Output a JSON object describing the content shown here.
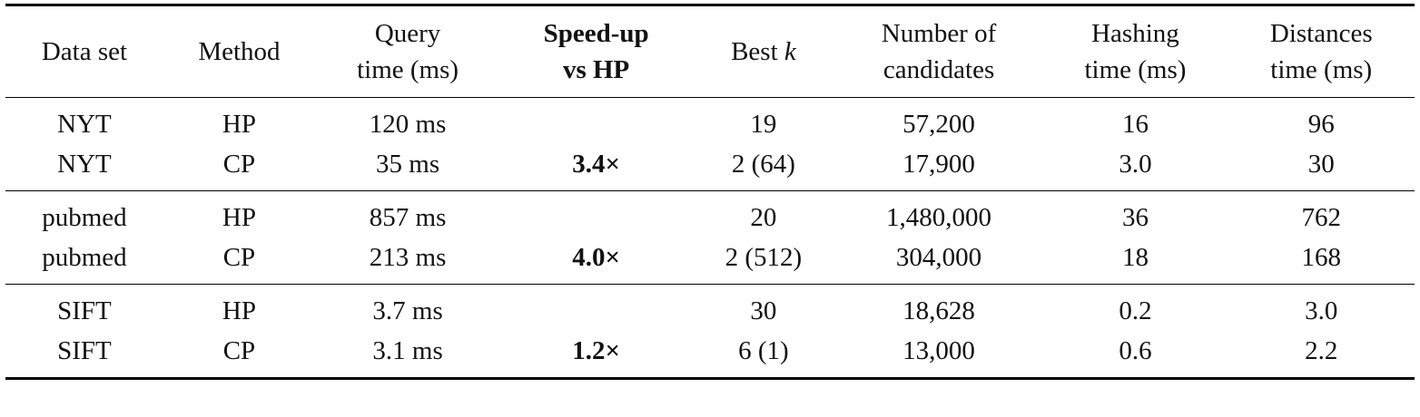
{
  "table": {
    "headers": [
      {
        "line1": "Data set",
        "line2": ""
      },
      {
        "line1": "Method",
        "line2": ""
      },
      {
        "line1": "Query",
        "line2": "time (ms)"
      },
      {
        "line1": "Speed-up",
        "line2": "vs HP"
      },
      {
        "line1": "Best",
        "line2": "k"
      },
      {
        "line1": "Number of",
        "line2": "candidates"
      },
      {
        "line1": "Hashing",
        "line2": "time (ms)"
      },
      {
        "line1": "Distances",
        "line2": "time (ms)"
      }
    ],
    "groups": [
      {
        "rows": [
          [
            "NYT",
            "HP",
            "120 ms",
            "",
            "19",
            "57,200",
            "16",
            "96"
          ],
          [
            "NYT",
            "CP",
            "35 ms",
            "3.4×",
            "2 (64)",
            "17,900",
            "3.0",
            "30"
          ]
        ]
      },
      {
        "rows": [
          [
            "pubmed",
            "HP",
            "857 ms",
            "",
            "20",
            "1,480,000",
            "36",
            "762"
          ],
          [
            "pubmed",
            "CP",
            "213 ms",
            "4.0×",
            "2 (512)",
            "304,000",
            "18",
            "168"
          ]
        ]
      },
      {
        "rows": [
          [
            "SIFT",
            "HP",
            "3.7 ms",
            "",
            "30",
            "18,628",
            "0.2",
            "3.0"
          ],
          [
            "SIFT",
            "CP",
            "3.1 ms",
            "1.2×",
            "6 (1)",
            "13,000",
            "0.6",
            "2.2"
          ]
        ]
      }
    ]
  }
}
